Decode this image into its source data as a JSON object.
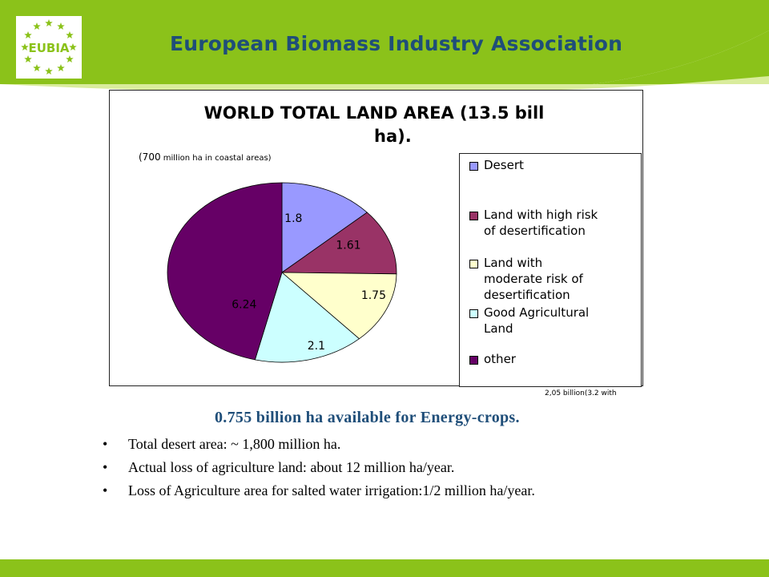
{
  "header": {
    "logo_text": "EUBIA",
    "org_name": "European Biomass Industry Association"
  },
  "colors": {
    "brand_green": "#8bc21a",
    "title_blue": "#1f4e79"
  },
  "chart_data": {
    "type": "pie",
    "title_line1": "WORLD TOTAL LAND AREA (13.5 bill",
    "title_line2": "ha).",
    "subtitle_num": "(700",
    "subtitle_text": "million ha in coastal areas)",
    "slices": [
      {
        "label": "Desert",
        "value": 1.8,
        "value_label": "1.8",
        "color": "#9999ff"
      },
      {
        "label": "Land with high risk of desertification",
        "value": 1.61,
        "value_label": "1.61",
        "color": "#993366"
      },
      {
        "label": "Land with moderate risk of desertification",
        "value": 1.75,
        "value_label": "1.75",
        "color": "#ffffcc"
      },
      {
        "label": "Good Agricultural Land",
        "value": 2.1,
        "value_label": "2.1",
        "color": "#ccffff"
      },
      {
        "label": "other",
        "value": 6.24,
        "value_label": "6.24",
        "color": "#660066"
      }
    ],
    "legend": {
      "placement": "right",
      "items": [
        {
          "lines": [
            "Desert"
          ]
        },
        {
          "lines": [
            "Land with high risk",
            "of desertification"
          ]
        },
        {
          "lines": [
            "Land with",
            "moderate risk of",
            "desertification"
          ]
        },
        {
          "lines": [
            "Good Agricultural",
            "Land"
          ]
        },
        {
          "lines": [
            "other"
          ]
        }
      ]
    },
    "footnote": "2,05 billion(3.2 with"
  },
  "highlight": "0.755 billion ha available for Energy-crops.",
  "bullets": [
    "Total desert area: ~ 1,800 million ha.",
    "Actual loss of agriculture land: about 12 million ha/year.",
    "Loss of Agriculture area for salted water irrigation:1/2 million ha/year."
  ],
  "bullet_symbol": "•"
}
